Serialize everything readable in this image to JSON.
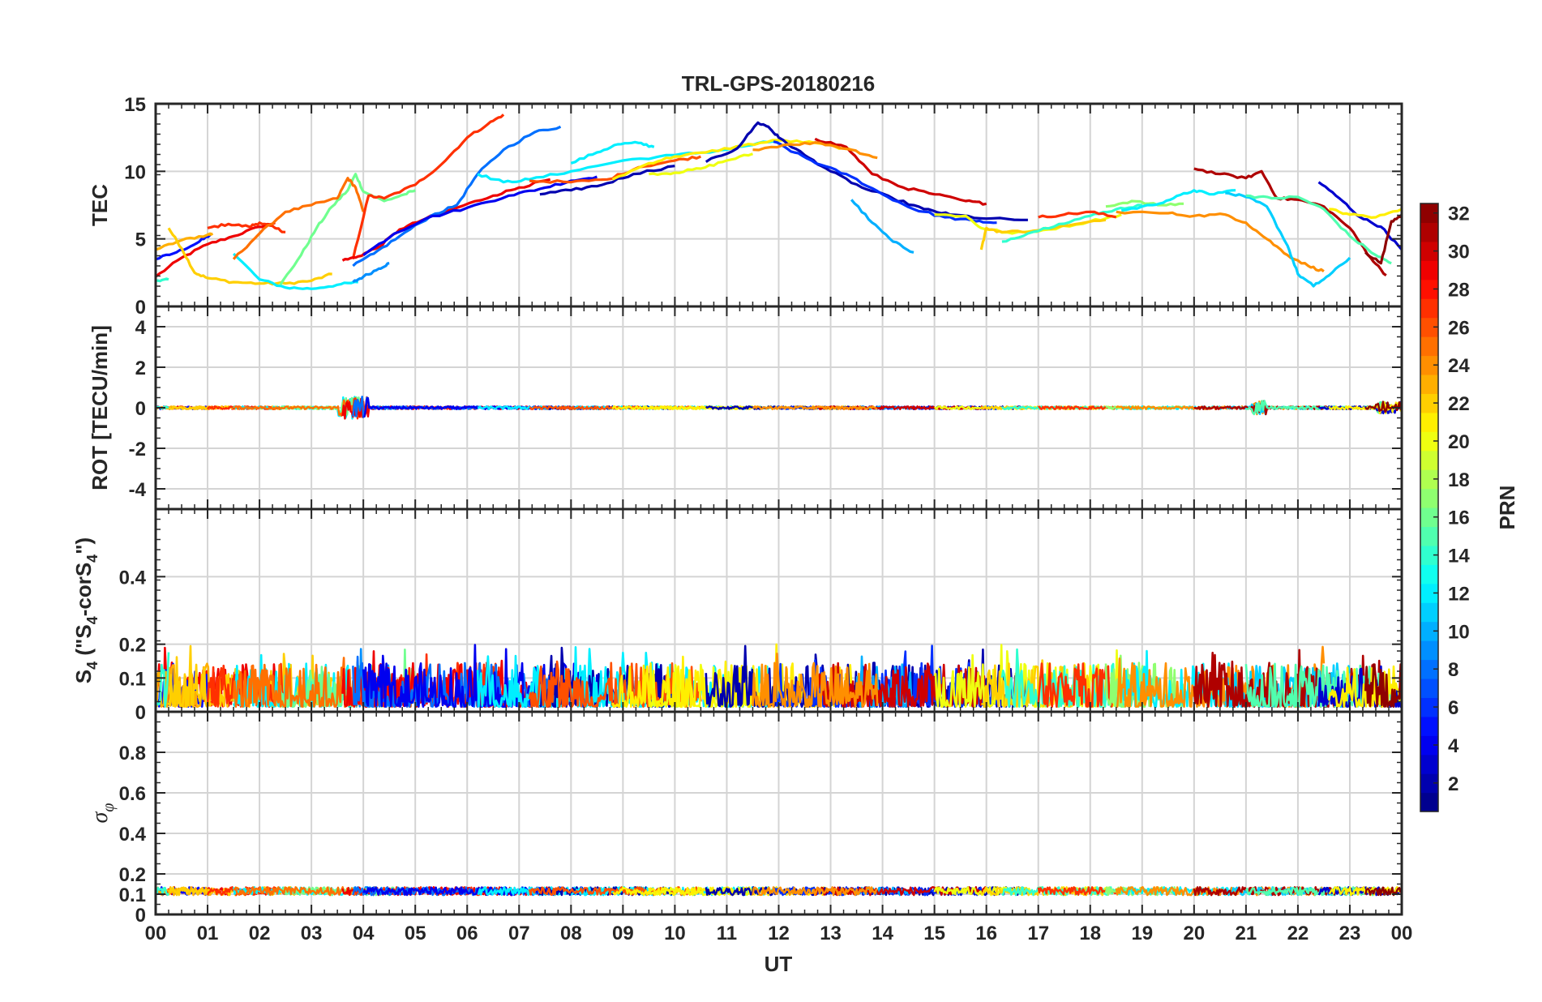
{
  "chart_data": {
    "type": "line",
    "title": "TRL-GPS-20180216",
    "xlabel": "UT",
    "xlim": [
      0,
      24
    ],
    "x_ticks": [
      0,
      1,
      2,
      3,
      4,
      5,
      6,
      7,
      8,
      9,
      10,
      11,
      12,
      13,
      14,
      15,
      16,
      17,
      18,
      19,
      20,
      21,
      22,
      23,
      24
    ],
    "x_tick_labels": [
      "00",
      "01",
      "02",
      "03",
      "04",
      "05",
      "06",
      "07",
      "08",
      "09",
      "10",
      "11",
      "12",
      "13",
      "14",
      "15",
      "16",
      "17",
      "18",
      "19",
      "20",
      "21",
      "22",
      "23",
      "00"
    ],
    "colorbar": {
      "label": "PRN",
      "range": [
        1,
        32
      ],
      "ticks": [
        2,
        4,
        6,
        8,
        10,
        12,
        14,
        16,
        18,
        20,
        22,
        24,
        26,
        28,
        30,
        32
      ],
      "tick_labels": [
        "2",
        "4",
        "6",
        "8",
        "10",
        "12",
        "14",
        "16",
        "18",
        "20",
        "22",
        "24",
        "26",
        "28",
        "30",
        "32"
      ]
    },
    "panels": [
      {
        "id": "tec",
        "ylabel": "TEC",
        "ylim": [
          0,
          15
        ],
        "y_ticks": [
          0,
          5,
          10,
          15
        ],
        "y_tick_labels": [
          "0",
          "5",
          "10",
          "15"
        ],
        "series": [
          {
            "prn": 29,
            "x": [
              0,
              0.5,
              1,
              1.5,
              2,
              2.3
            ],
            "y": [
              2.2,
              3.6,
              4.6,
              5.2,
              5.9,
              6.2
            ]
          },
          {
            "prn": 5,
            "x": [
              0,
              0.4,
              0.8,
              1.05
            ],
            "y": [
              3.5,
              4.0,
              4.7,
              5.3
            ]
          },
          {
            "prn": 23,
            "x": [
              0,
              0.5,
              1,
              1.1
            ],
            "y": [
              4.2,
              4.9,
              5.3,
              5.4
            ]
          },
          {
            "prn": 22,
            "x": [
              0.25,
              0.5,
              0.75,
              1.0,
              1.5,
              2.0,
              2.5,
              3.0,
              3.4
            ],
            "y": [
              5.8,
              4.3,
              2.5,
              2.1,
              1.8,
              1.7,
              1.7,
              1.9,
              2.4
            ]
          },
          {
            "prn": 14,
            "x": [
              0,
              0.25
            ],
            "y": [
              1.9,
              2.0
            ]
          },
          {
            "prn": 27,
            "x": [
              1.0,
              1.4,
              1.8,
              2.0,
              2.3,
              2.5
            ],
            "y": [
              5.8,
              6.1,
              5.9,
              6.2,
              5.8,
              5.5
            ]
          },
          {
            "prn": 12,
            "x": [
              1.5,
              2.0,
              2.5,
              3.0,
              3.5,
              3.9
            ],
            "y": [
              3.9,
              2.0,
              1.4,
              1.3,
              1.6,
              1.8
            ]
          },
          {
            "prn": 9,
            "x": [
              3.8,
              4.0,
              4.3,
              4.5
            ],
            "y": [
              1.8,
              2.2,
              2.8,
              3.2
            ]
          },
          {
            "prn": 16,
            "x": [
              2.4,
              2.8,
              3.1,
              3.4,
              3.7,
              3.85,
              4.0,
              4.4,
              4.8,
              5.0
            ],
            "y": [
              1.6,
              3.8,
              5.8,
              7.4,
              8.6,
              9.8,
              8.5,
              7.8,
              8.3,
              8.6
            ]
          },
          {
            "prn": 25,
            "x": [
              1.5,
              2.0,
              2.5,
              3.0,
              3.5,
              3.7,
              3.85,
              4.0
            ],
            "y": [
              3.5,
              5.4,
              7.0,
              7.5,
              8.0,
              9.5,
              8.8,
              7.0
            ]
          },
          {
            "prn": 27,
            "x": [
              3.8,
              4.1,
              4.4,
              5.0,
              5.5,
              6.0,
              6.4,
              6.7
            ],
            "y": [
              3.5,
              8.2,
              8.0,
              9.0,
              10.5,
              12.5,
              13.5,
              14.2
            ]
          },
          {
            "prn": 29,
            "x": [
              3.6,
              3.9,
              4.3,
              4.7,
              5.2,
              5.8,
              6.5,
              7.0,
              7.6
            ],
            "y": [
              3.4,
              3.7,
              4.4,
              5.7,
              6.5,
              7.3,
              8.2,
              8.8,
              9.4
            ]
          },
          {
            "prn": 8,
            "x": [
              3.8,
              4.2,
              4.7,
              5.3,
              5.8,
              6.2,
              6.7,
              7.3,
              7.8
            ],
            "y": [
              3.0,
              3.9,
              5.2,
              6.7,
              7.5,
              9.8,
              11.6,
              12.9,
              13.3
            ]
          },
          {
            "prn": 4,
            "x": [
              4.0,
              4.6,
              5.2,
              6.0,
              6.8,
              7.4,
              8.0,
              8.5
            ],
            "y": [
              3.8,
              5.4,
              6.5,
              7.3,
              8.2,
              8.7,
              9.3,
              9.6
            ]
          },
          {
            "prn": 12,
            "x": [
              6.2,
              6.7,
              7.2,
              8.0,
              9.0,
              10.0,
              10.8,
              11.4,
              12.0
            ],
            "y": [
              9.8,
              9.2,
              9.4,
              10.0,
              10.8,
              11.2,
              11.5,
              11.9,
              12.3
            ]
          },
          {
            "prn": 2,
            "x": [
              7.4,
              8.0,
              8.6,
              9.2,
              10.0
            ],
            "y": [
              8.3,
              8.6,
              9.0,
              9.8,
              10.4
            ]
          },
          {
            "prn": 12,
            "x": [
              8.0,
              8.5,
              8.9,
              9.3,
              9.6
            ],
            "y": [
              10.6,
              11.4,
              12.0,
              12.1,
              11.8
            ]
          },
          {
            "prn": 26,
            "x": [
              7.2,
              8.0,
              8.7,
              9.3,
              10.0,
              10.5
            ],
            "y": [
              9.3,
              9.2,
              9.4,
              10.3,
              10.8,
              11.1
            ]
          },
          {
            "prn": 20,
            "x": [
              9.5,
              10.0,
              10.5,
              11.0,
              11.5
            ],
            "y": [
              9.8,
              9.9,
              10.2,
              10.8,
              11.3
            ]
          },
          {
            "prn": 21,
            "x": [
              8.8,
              9.5,
              10.0,
              10.6,
              11.3,
              12.0,
              12.7,
              13.4
            ],
            "y": [
              9.4,
              10.6,
              11.1,
              11.4,
              11.9,
              12.3,
              12.1,
              11.6
            ]
          },
          {
            "prn": 2,
            "x": [
              10.6,
              11.2,
              11.6,
              11.8,
              12.0,
              12.5,
              13.0,
              13.6,
              14.2,
              14.8,
              15.3,
              16.0,
              16.8
            ],
            "y": [
              10.7,
              11.7,
              13.6,
              13.3,
              12.5,
              11.2,
              10.0,
              8.8,
              8.0,
              7.2,
              6.8,
              6.5,
              6.4
            ]
          },
          {
            "prn": 6,
            "x": [
              11.9,
              12.3,
              12.8,
              13.4,
              14.0,
              14.6,
              15.2,
              15.8,
              16.2
            ],
            "y": [
              12.2,
              11.4,
              10.5,
              9.6,
              8.3,
              7.2,
              6.6,
              6.3,
              6.2
            ]
          },
          {
            "prn": 10,
            "x": [
              13.4,
              13.8,
              14.2,
              14.6
            ],
            "y": [
              7.9,
              6.2,
              4.8,
              4.0
            ]
          },
          {
            "prn": 30,
            "x": [
              12.7,
              13.3,
              13.8,
              14.4,
              15.0,
              15.6,
              16.0
            ],
            "y": [
              12.4,
              11.8,
              9.8,
              8.8,
              8.3,
              7.8,
              7.6
            ]
          },
          {
            "prn": 24,
            "x": [
              11.5,
              12.2,
              12.8,
              13.4,
              13.9
            ],
            "y": [
              11.6,
              12.0,
              12.1,
              11.6,
              11.0
            ]
          },
          {
            "prn": 20,
            "x": [
              15.0,
              15.6,
              15.9,
              16.5,
              17.2,
              18.0,
              18.6
            ],
            "y": [
              6.8,
              6.7,
              5.8,
              5.4,
              5.7,
              6.3,
              6.8
            ]
          },
          {
            "prn": 22,
            "x": [
              15.9,
              16.0,
              16.3,
              16.9,
              17.6,
              18.3
            ],
            "y": [
              4.2,
              5.8,
              5.5,
              5.6,
              6.0,
              6.4
            ]
          },
          {
            "prn": 14,
            "x": [
              16.3,
              16.8,
              17.4,
              18.0,
              18.5,
              19.0
            ],
            "y": [
              4.8,
              5.4,
              6.1,
              6.7,
              7.2,
              7.5
            ]
          },
          {
            "prn": 27,
            "x": [
              17.0,
              17.5,
              18.0,
              18.5
            ],
            "y": [
              6.6,
              6.8,
              7.0,
              6.6
            ]
          },
          {
            "prn": 17,
            "x": [
              18.3,
              18.8,
              19.3,
              19.8
            ],
            "y": [
              7.4,
              7.8,
              7.5,
              7.6
            ]
          },
          {
            "prn": 12,
            "x": [
              18.6,
              19.2,
              19.6,
              20.0,
              20.3,
              20.8
            ],
            "y": [
              7.1,
              7.5,
              8.0,
              8.6,
              8.3,
              8.6
            ]
          },
          {
            "prn": 24,
            "x": [
              18.5,
              19.5,
              20.0,
              20.6,
              21.0,
              21.4,
              21.8,
              22.2,
              22.5
            ],
            "y": [
              7.0,
              6.9,
              6.7,
              6.8,
              6.2,
              5.0,
              3.8,
              3.0,
              2.6
            ]
          },
          {
            "prn": 11,
            "x": [
              20.6,
              21.0,
              21.4,
              21.8,
              22.0,
              22.3,
              22.6,
              23.0
            ],
            "y": [
              8.4,
              8.1,
              7.4,
              4.5,
              2.4,
              1.5,
              2.3,
              3.6
            ]
          },
          {
            "prn": 31,
            "x": [
              20.0,
              20.5,
              21.0,
              21.3,
              21.6,
              22.0,
              22.5,
              23.0,
              23.4,
              23.7
            ],
            "y": [
              10.2,
              9.8,
              9.5,
              10.0,
              8.0,
              7.9,
              7.4,
              5.8,
              3.6,
              2.3
            ]
          },
          {
            "prn": 15,
            "x": [
              21.0,
              21.5,
              22.0,
              22.5,
              23.0,
              23.5,
              23.8
            ],
            "y": [
              8.2,
              8.0,
              8.1,
              7.2,
              5.2,
              3.8,
              3.2
            ]
          },
          {
            "prn": 3,
            "x": [
              22.4,
              22.8,
              23.2,
              23.6,
              24.0
            ],
            "y": [
              9.2,
              8.0,
              6.6,
              5.9,
              4.2
            ]
          },
          {
            "prn": 21,
            "x": [
              22.6,
              23.0,
              23.5,
              24.0
            ],
            "y": [
              7.2,
              6.8,
              6.6,
              7.2
            ]
          },
          {
            "prn": 32,
            "x": [
              23.3,
              23.6,
              23.8,
              24.0
            ],
            "y": [
              4.0,
              3.2,
              6.3,
              6.8
            ]
          }
        ]
      },
      {
        "id": "rot",
        "ylabel": "ROT [TECU/min]",
        "ylim": [
          -5,
          5
        ],
        "y_ticks": [
          -4,
          -2,
          0,
          2,
          4
        ],
        "y_tick_labels": [
          "-4",
          "-2",
          "0",
          "2",
          "4"
        ]
      },
      {
        "id": "s4",
        "ylabel_main": "S",
        "ylabel_sub1": "4",
        "ylabel_mid": " (\"S",
        "ylabel_sub2": "4",
        "ylabel_mid2": "-corS",
        "ylabel_sub3": "4",
        "ylabel_end": "\")",
        "ylim": [
          0,
          0.6
        ],
        "y_ticks": [
          0,
          0.1,
          0.2,
          0.4
        ],
        "y_tick_labels": [
          "0",
          "0.1",
          "0.2",
          "0.4"
        ]
      },
      {
        "id": "sigma",
        "ylabel_main": "σ",
        "ylabel_sub": "φ",
        "ylim": [
          0,
          1
        ],
        "y_ticks": [
          0,
          0.1,
          0.2,
          0.4,
          0.6,
          0.8
        ],
        "y_tick_labels": [
          "0",
          "0.1",
          "0.2",
          "0.4",
          "0.6",
          "0.8"
        ]
      }
    ]
  }
}
